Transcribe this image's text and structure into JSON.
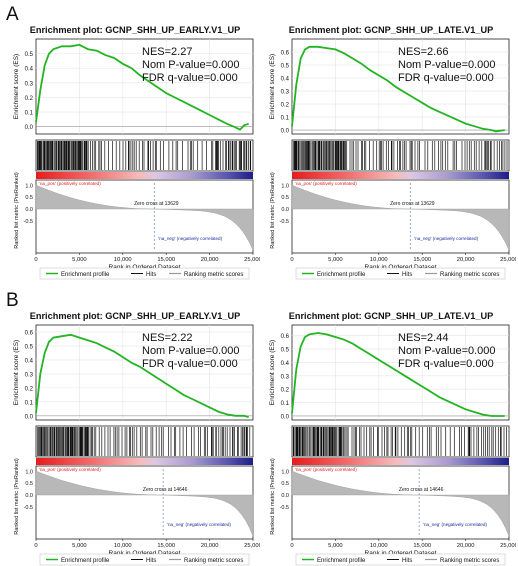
{
  "panels": [
    {
      "label": "A"
    },
    {
      "label": "B"
    }
  ],
  "chart_data": [
    {
      "type": "line",
      "panel": "A",
      "title": "Enrichment plot: GCNP_SHH_UP_EARLY.V1_UP",
      "ylabel": "Enrichment score (ES)",
      "rank_ylabel": "Ranked list metric (PreRanked)",
      "xlabel": "Rank in Ordered Dataset",
      "stats": [
        "NES=2.27",
        "Nom P-value=0.000",
        "FDR q-value=0.000"
      ],
      "ylim": [
        -0.05,
        0.6
      ],
      "yticks": [
        "0.0",
        "0.1",
        "0.2",
        "0.3",
        "0.4",
        "0.5"
      ],
      "rank_yticks": [
        "1.0",
        "0.5",
        "0.0",
        "-0.5"
      ],
      "xlim": [
        0,
        25000
      ],
      "xticks": [
        "0",
        "5,000",
        "10,000",
        "15,000",
        "20,000",
        "25,000"
      ],
      "pos_label": "'na_pos' (positively correlated)",
      "neg_label": "'na_neg' (negatively correlated)",
      "zero_cross_label": "Zero cross at 13629",
      "zero_cross": 13629,
      "legend": [
        "Enrichment profile",
        "Hits",
        "Ranking metric scores"
      ],
      "es_curve": [
        [
          0,
          0.03
        ],
        [
          500,
          0.25
        ],
        [
          1000,
          0.42
        ],
        [
          1500,
          0.5
        ],
        [
          2000,
          0.53
        ],
        [
          3000,
          0.55
        ],
        [
          4000,
          0.55
        ],
        [
          5000,
          0.56
        ],
        [
          6000,
          0.53
        ],
        [
          7000,
          0.52
        ],
        [
          8000,
          0.49
        ],
        [
          9000,
          0.47
        ],
        [
          10000,
          0.43
        ],
        [
          11000,
          0.4
        ],
        [
          12000,
          0.35
        ],
        [
          13000,
          0.31
        ],
        [
          14000,
          0.27
        ],
        [
          15000,
          0.23
        ],
        [
          16000,
          0.2
        ],
        [
          17000,
          0.17
        ],
        [
          18000,
          0.14
        ],
        [
          19000,
          0.11
        ],
        [
          20000,
          0.08
        ],
        [
          21000,
          0.05
        ],
        [
          22000,
          0.02
        ],
        [
          22800,
          0.0
        ],
        [
          23500,
          -0.02
        ],
        [
          24000,
          0.01
        ],
        [
          24500,
          0.02
        ]
      ]
    },
    {
      "type": "line",
      "panel": "A",
      "title": "Enrichment plot: GCNP_SHH_UP_LATE.V1_UP",
      "ylabel": "Enrichment score (ES)",
      "rank_ylabel": "Ranked list metric (PreRanked)",
      "xlabel": "Rank in Ordered Dataset",
      "stats": [
        "NES=2.66",
        "Nom P-value=0.000",
        "FDR q-value=0.000"
      ],
      "ylim": [
        -0.03,
        0.7
      ],
      "yticks": [
        "0.0",
        "0.1",
        "0.2",
        "0.3",
        "0.4",
        "0.5",
        "0.6"
      ],
      "rank_yticks": [
        "1.0",
        "0.5",
        "0.0",
        "-0.5"
      ],
      "xlim": [
        0,
        25000
      ],
      "xticks": [
        "0",
        "5,000",
        "10,000",
        "15,000",
        "20,000",
        "25,000"
      ],
      "pos_label": "'na_pos' (positively correlated)",
      "neg_label": "'na_neg' (negatively correlated)",
      "zero_cross_label": "Zero cross at 13629",
      "zero_cross": 13629,
      "legend": [
        "Enrichment profile",
        "Hits",
        "Ranking metric scores"
      ],
      "es_curve": [
        [
          0,
          0.03
        ],
        [
          500,
          0.35
        ],
        [
          1000,
          0.55
        ],
        [
          1500,
          0.62
        ],
        [
          2000,
          0.64
        ],
        [
          3000,
          0.64
        ],
        [
          4000,
          0.63
        ],
        [
          5000,
          0.62
        ],
        [
          6000,
          0.59
        ],
        [
          7000,
          0.55
        ],
        [
          8000,
          0.51
        ],
        [
          9000,
          0.46
        ],
        [
          10000,
          0.42
        ],
        [
          11000,
          0.38
        ],
        [
          12000,
          0.33
        ],
        [
          13000,
          0.29
        ],
        [
          14000,
          0.25
        ],
        [
          15000,
          0.21
        ],
        [
          16000,
          0.17
        ],
        [
          17000,
          0.14
        ],
        [
          18000,
          0.11
        ],
        [
          19000,
          0.08
        ],
        [
          20000,
          0.05
        ],
        [
          21000,
          0.03
        ],
        [
          22000,
          0.01
        ],
        [
          23000,
          0.0
        ],
        [
          23500,
          -0.01
        ],
        [
          24500,
          0.0
        ]
      ]
    },
    {
      "type": "line",
      "panel": "B",
      "title": "Enrichment plot: GCNP_SHH_UP_EARLY.V1_UP",
      "ylabel": "Enrichment score (ES)",
      "rank_ylabel": "Ranked list metric (PreRanked)",
      "xlabel": "Rank in Ordered Dataset",
      "stats": [
        "NES=2.22",
        "Nom P-value=0.000",
        "FDR q-value=0.000"
      ],
      "ylim": [
        -0.03,
        0.65
      ],
      "yticks": [
        "0.0",
        "0.1",
        "0.2",
        "0.3",
        "0.4",
        "0.5",
        "0.6"
      ],
      "rank_yticks": [
        "1.0",
        "0.5",
        "0.0",
        "-0.5"
      ],
      "xlim": [
        0,
        25000
      ],
      "xticks": [
        "0",
        "5,000",
        "10,000",
        "15,000",
        "20,000",
        "25,000"
      ],
      "pos_label": "'na_pos' (positively correlated)",
      "neg_label": "'na_neg' (negatively correlated)",
      "zero_cross_label": "Zero cross at 14646",
      "zero_cross": 14646,
      "legend": [
        "Enrichment profile",
        "Hits",
        "Ranking metric scores"
      ],
      "es_curve": [
        [
          0,
          0.02
        ],
        [
          500,
          0.3
        ],
        [
          1000,
          0.45
        ],
        [
          1500,
          0.53
        ],
        [
          2000,
          0.56
        ],
        [
          3000,
          0.57
        ],
        [
          4000,
          0.58
        ],
        [
          5000,
          0.56
        ],
        [
          6000,
          0.54
        ],
        [
          7000,
          0.52
        ],
        [
          8000,
          0.49
        ],
        [
          9000,
          0.46
        ],
        [
          10000,
          0.42
        ],
        [
          11000,
          0.38
        ],
        [
          12000,
          0.35
        ],
        [
          13000,
          0.31
        ],
        [
          14000,
          0.27
        ],
        [
          15000,
          0.23
        ],
        [
          16000,
          0.19
        ],
        [
          17000,
          0.15
        ],
        [
          18000,
          0.12
        ],
        [
          19000,
          0.09
        ],
        [
          20000,
          0.06
        ],
        [
          21000,
          0.03
        ],
        [
          22000,
          0.01
        ],
        [
          23000,
          0.0
        ],
        [
          24000,
          0.0
        ],
        [
          24500,
          -0.01
        ]
      ]
    },
    {
      "type": "line",
      "panel": "B",
      "title": "Enrichment plot: GCNP_SHH_UP_LATE.V1_UP",
      "ylabel": "Enrichment score (ES)",
      "rank_ylabel": "Ranked list metric (PreRanked)",
      "xlabel": "Rank in Ordered Dataset",
      "stats": [
        "NES=2.44",
        "Nom P-value=0.000",
        "FDR q-value=0.000"
      ],
      "ylim": [
        -0.03,
        0.68
      ],
      "yticks": [
        "0.0",
        "0.1",
        "0.2",
        "0.3",
        "0.4",
        "0.5",
        "0.6"
      ],
      "rank_yticks": [
        "1.0",
        "0.5",
        "0.0",
        "-0.5"
      ],
      "xlim": [
        0,
        25000
      ],
      "xticks": [
        "0",
        "5,000",
        "10,000",
        "15,000",
        "20,000",
        "25,000"
      ],
      "pos_label": "'na_pos' (positively correlated)",
      "neg_label": "'na_neg' (negatively correlated)",
      "zero_cross_label": "Zero cross at 14646",
      "zero_cross": 14646,
      "legend": [
        "Enrichment profile",
        "Hits",
        "Ranking metric scores"
      ],
      "es_curve": [
        [
          0,
          0.02
        ],
        [
          500,
          0.35
        ],
        [
          1000,
          0.52
        ],
        [
          1500,
          0.59
        ],
        [
          2000,
          0.61
        ],
        [
          3000,
          0.62
        ],
        [
          4000,
          0.61
        ],
        [
          5000,
          0.59
        ],
        [
          6000,
          0.57
        ],
        [
          7000,
          0.54
        ],
        [
          8000,
          0.5
        ],
        [
          9000,
          0.46
        ],
        [
          10000,
          0.42
        ],
        [
          11000,
          0.38
        ],
        [
          12000,
          0.34
        ],
        [
          13000,
          0.3
        ],
        [
          14000,
          0.26
        ],
        [
          15000,
          0.22
        ],
        [
          16000,
          0.18
        ],
        [
          17000,
          0.14
        ],
        [
          18000,
          0.11
        ],
        [
          19000,
          0.08
        ],
        [
          20000,
          0.05
        ],
        [
          21000,
          0.03
        ],
        [
          22000,
          0.01
        ],
        [
          23000,
          0.0
        ],
        [
          24000,
          0.0
        ],
        [
          24500,
          0.0
        ]
      ]
    }
  ],
  "colors": {
    "es_line": "#22b422",
    "hits": "#111111",
    "pos": "#e02020",
    "neg": "#1a2a9a",
    "metric_fill": "#b8b8b8",
    "zero_line": "#6b88c8"
  }
}
